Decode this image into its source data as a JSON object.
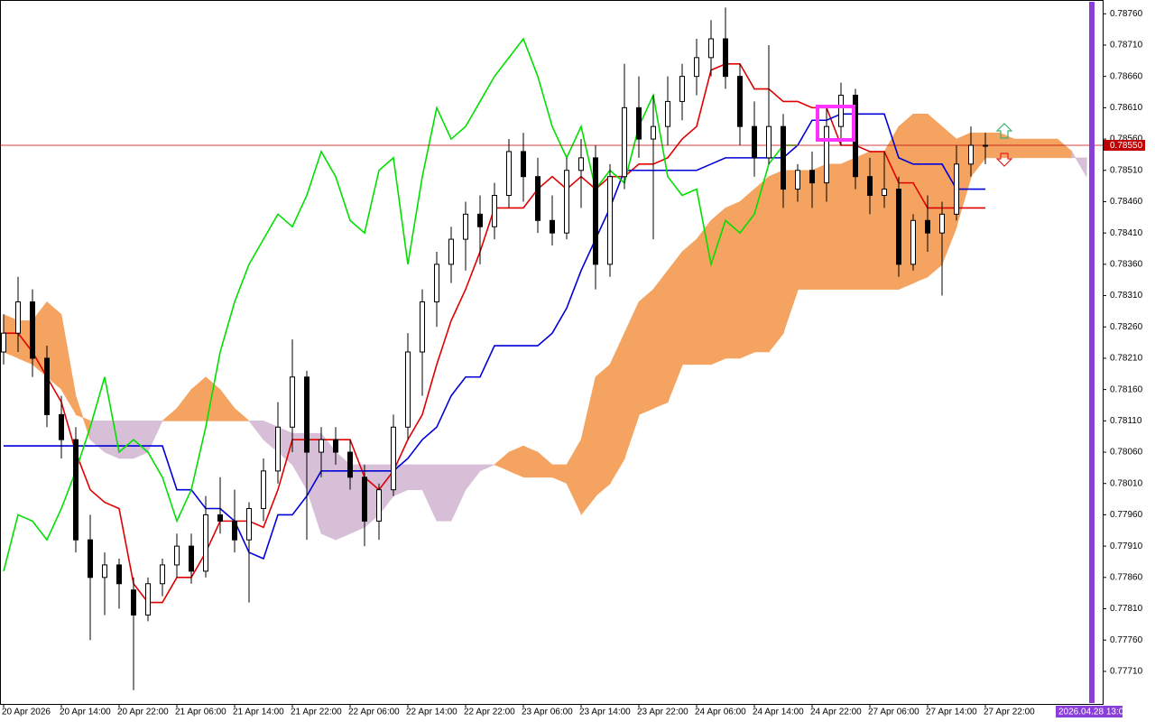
{
  "chart_data": {
    "type": "candlestick",
    "categories": [
      "20 Apr 2026",
      null,
      null,
      null,
      "20 Apr 14:00",
      null,
      null,
      null,
      "20 Apr 22:00",
      null,
      null,
      null,
      "21 Apr 06:00",
      null,
      null,
      null,
      "21 Apr 14:00",
      null,
      null,
      null,
      "21 Apr 22:00",
      null,
      null,
      null,
      "22 Apr 06:00",
      null,
      null,
      null,
      "22 Apr 14:00",
      null,
      null,
      null,
      "22 Apr 22:00",
      null,
      null,
      null,
      "23 Apr 06:00",
      null,
      null,
      null,
      "23 Apr 14:00",
      null,
      null,
      null,
      "23 Apr 22:00",
      null,
      null,
      null,
      "24 Apr 06:00",
      null,
      null,
      null,
      "24 Apr 14:00",
      null,
      null,
      null,
      "24 Apr 22:00",
      null,
      null,
      null,
      "27 Apr 06:00",
      null,
      null,
      null,
      "27 Apr 14:00",
      null,
      null,
      null,
      "27 Apr 22:00",
      null,
      null,
      null,
      null,
      null,
      null,
      null
    ],
    "open": [
      0.7822,
      0.7825,
      0.783,
      0.7821,
      0.7812,
      0.7808,
      0.7792,
      0.7786,
      0.7788,
      0.7784,
      0.778,
      0.7785,
      0.7788,
      0.7791,
      0.7787,
      0.7796,
      0.7795,
      0.7792,
      0.7797,
      0.7803,
      0.781,
      0.7818,
      0.7806,
      0.7808,
      0.7806,
      0.7802,
      0.7795,
      0.78,
      0.781,
      0.7822,
      0.783,
      0.7836,
      0.784,
      0.7844,
      0.7842,
      0.7847,
      0.7854,
      0.785,
      0.7843,
      0.7841,
      0.7851,
      0.7853,
      0.7836,
      0.785,
      0.7861,
      0.7856,
      0.7858,
      0.7862,
      0.7866,
      0.7869,
      0.7872,
      0.7866,
      0.7858,
      0.7853,
      0.7858,
      0.7848,
      0.7851,
      0.7849,
      0.7858,
      0.7863,
      0.785,
      0.7847,
      0.7848,
      0.7836,
      0.7843,
      0.7841,
      0.7844,
      0.7852,
      0.7855,
      null,
      null,
      null,
      null,
      null,
      null,
      null
    ],
    "high": [
      0.7828,
      0.7834,
      0.7832,
      0.7823,
      0.7815,
      0.781,
      0.7796,
      0.779,
      0.7789,
      0.7786,
      0.7786,
      0.7789,
      0.7793,
      0.7793,
      0.7799,
      0.7802,
      0.78,
      0.7798,
      0.7805,
      0.7814,
      0.7824,
      0.7819,
      0.781,
      0.781,
      0.7808,
      0.7804,
      0.7801,
      0.7812,
      0.7825,
      0.7832,
      0.7838,
      0.7842,
      0.7846,
      0.7847,
      0.7849,
      0.7856,
      0.7857,
      0.7853,
      0.7847,
      0.7853,
      0.7856,
      0.7855,
      0.7852,
      0.7868,
      0.7866,
      0.7863,
      0.7866,
      0.7868,
      0.7872,
      0.7875,
      0.7877,
      0.7868,
      0.7862,
      0.7871,
      0.786,
      0.7852,
      0.7854,
      0.7861,
      0.7865,
      0.7864,
      0.7853,
      0.7854,
      0.785,
      0.7844,
      0.7847,
      0.7846,
      0.7855,
      0.7858,
      0.7857,
      null,
      null,
      null,
      null,
      null,
      null,
      null
    ],
    "low": [
      0.782,
      0.7822,
      0.7818,
      0.781,
      0.7805,
      0.779,
      0.7776,
      0.778,
      0.7781,
      0.7768,
      0.7779,
      0.7783,
      0.7786,
      0.7785,
      0.7786,
      0.7793,
      0.779,
      0.7782,
      0.7795,
      0.7801,
      0.7806,
      0.7792,
      0.7802,
      0.7804,
      0.78,
      0.7791,
      0.7792,
      0.7799,
      0.7808,
      0.7815,
      0.7826,
      0.7833,
      0.7835,
      0.7836,
      0.784,
      0.7845,
      0.7846,
      0.7841,
      0.7839,
      0.784,
      0.7845,
      0.7832,
      0.7834,
      0.7848,
      0.7853,
      0.784,
      0.7855,
      0.7859,
      0.7863,
      0.7866,
      0.7864,
      0.7855,
      0.785,
      0.7852,
      0.7845,
      0.7846,
      0.7845,
      0.7846,
      0.7855,
      0.7848,
      0.7844,
      0.7845,
      0.7834,
      0.7835,
      0.7838,
      0.7831,
      0.7843,
      0.785,
      0.7852,
      null,
      null,
      null,
      null,
      null,
      null,
      null
    ],
    "close": [
      0.7825,
      0.783,
      0.7821,
      0.7812,
      0.7808,
      0.7792,
      0.7786,
      0.7788,
      0.7785,
      0.778,
      0.7785,
      0.7788,
      0.7791,
      0.7787,
      0.7796,
      0.7795,
      0.7792,
      0.7797,
      0.7803,
      0.781,
      0.7818,
      0.7806,
      0.7808,
      0.7806,
      0.7802,
      0.7795,
      0.78,
      0.781,
      0.7822,
      0.783,
      0.7836,
      0.784,
      0.7844,
      0.7842,
      0.7847,
      0.7854,
      0.785,
      0.7843,
      0.7841,
      0.7851,
      0.7853,
      0.7836,
      0.785,
      0.7861,
      0.7856,
      0.7858,
      0.7862,
      0.7866,
      0.7869,
      0.7872,
      0.7866,
      0.7858,
      0.7853,
      0.7858,
      0.7848,
      0.7851,
      0.7849,
      0.7858,
      0.7863,
      0.785,
      0.7847,
      0.7848,
      0.7836,
      0.7843,
      0.7841,
      0.7844,
      0.7852,
      0.7855,
      0.7855,
      null,
      null,
      null,
      null,
      null,
      null,
      null
    ],
    "up_color": "#ffffff",
    "down_color": "#000000",
    "wick_color": "#000000",
    "indicators": {
      "senkou_span_a": {
        "color": "#f4a460",
        "values": [
          0.7828,
          0.7827,
          0.7827,
          0.783,
          0.7828,
          0.7815,
          0.7808,
          0.7806,
          0.7805,
          0.7805,
          0.7806,
          0.7811,
          0.7813,
          0.7816,
          0.7818,
          0.7816,
          0.7813,
          0.7811,
          0.7808,
          0.7806,
          0.7804,
          0.78,
          0.7793,
          0.7792,
          0.7793,
          0.7794,
          0.7796,
          0.7799,
          0.78,
          0.78,
          0.7795,
          0.7795,
          0.78,
          0.7803,
          0.7804,
          0.7806,
          0.7807,
          0.7806,
          0.7804,
          0.7804,
          0.7808,
          0.7818,
          0.782,
          0.7825,
          0.783,
          0.7832,
          0.7835,
          0.7838,
          0.784,
          0.7843,
          0.7845,
          0.7846,
          0.7848,
          0.785,
          0.7851,
          0.7851,
          0.7851,
          0.7852,
          0.7852,
          0.7853,
          0.7854,
          0.7854,
          0.7858,
          0.786,
          0.786,
          0.7858,
          0.7856,
          0.7857,
          0.7857,
          0.7857,
          0.7856,
          0.7856,
          0.7856,
          0.7856,
          0.7854,
          0.785
        ]
      },
      "senkou_span_b": {
        "color": "#d8bfd8",
        "values": [
          0.7822,
          0.7821,
          0.782,
          0.7818,
          0.7816,
          0.7812,
          0.7811,
          0.7811,
          0.7811,
          0.7811,
          0.7811,
          0.7811,
          0.7811,
          0.7811,
          0.7811,
          0.7811,
          0.7811,
          0.7811,
          0.7811,
          0.781,
          0.7809,
          0.7809,
          0.7809,
          0.7806,
          0.7804,
          0.7804,
          0.7804,
          0.7804,
          0.7804,
          0.7804,
          0.7804,
          0.7804,
          0.7804,
          0.7804,
          0.7804,
          0.7803,
          0.7802,
          0.7802,
          0.7802,
          0.7801,
          0.7796,
          0.7799,
          0.7801,
          0.7805,
          0.7812,
          0.7813,
          0.7814,
          0.782,
          0.782,
          0.782,
          0.7821,
          0.7821,
          0.7822,
          0.7822,
          0.7825,
          0.7832,
          0.7832,
          0.7832,
          0.7832,
          0.7832,
          0.7832,
          0.7832,
          0.7832,
          0.7833,
          0.7834,
          0.7836,
          0.7842,
          0.785,
          0.7853,
          0.7853,
          0.7853,
          0.7853,
          0.7853,
          0.7853,
          0.7853,
          0.7853
        ]
      },
      "tenkan_sen": {
        "color": "#e00000",
        "values": [
          0.7825,
          0.7825,
          0.7822,
          0.7818,
          0.7814,
          0.7806,
          0.78,
          0.7798,
          0.7797,
          0.7785,
          0.7782,
          0.7782,
          0.7786,
          0.7786,
          0.779,
          0.7795,
          0.7795,
          0.7795,
          0.7794,
          0.78,
          0.7808,
          0.7808,
          0.7808,
          0.7808,
          0.7808,
          0.7802,
          0.78,
          0.7803,
          0.7808,
          0.7812,
          0.782,
          0.7827,
          0.7832,
          0.7838,
          0.7845,
          0.7845,
          0.7845,
          0.7848,
          0.785,
          0.7848,
          0.785,
          0.7848,
          0.785,
          0.785,
          0.7852,
          0.7852,
          0.7853,
          0.7856,
          0.7858,
          0.7867,
          0.7868,
          0.7868,
          0.7864,
          0.7864,
          0.7862,
          0.7862,
          0.7861,
          0.7861,
          0.7855,
          0.7855,
          0.7854,
          0.7854,
          0.7849,
          0.7849,
          0.7845,
          0.7845,
          0.7845,
          0.7845,
          0.7845,
          null,
          null,
          null,
          null,
          null,
          null,
          null
        ]
      },
      "kijun_sen": {
        "color": "#0000d8",
        "values": [
          0.7807,
          0.7807,
          0.7807,
          0.7807,
          0.7807,
          0.7807,
          0.7807,
          0.7807,
          0.7807,
          0.7807,
          0.7807,
          0.7807,
          0.78,
          0.78,
          0.7797,
          0.7797,
          0.7795,
          0.779,
          0.7789,
          0.7796,
          0.7796,
          0.7799,
          0.7803,
          0.7803,
          0.7803,
          0.7803,
          0.7803,
          0.7803,
          0.7805,
          0.7808,
          0.781,
          0.7815,
          0.7818,
          0.7818,
          0.7823,
          0.7823,
          0.7823,
          0.7823,
          0.7825,
          0.7829,
          0.7835,
          0.784,
          0.7845,
          0.7851,
          0.7851,
          0.7851,
          0.7851,
          0.7851,
          0.7851,
          0.7852,
          0.7853,
          0.7853,
          0.7853,
          0.7853,
          0.7853,
          0.7855,
          0.7859,
          0.7859,
          0.786,
          0.786,
          0.786,
          0.786,
          0.7853,
          0.7852,
          0.7852,
          0.7852,
          0.7848,
          0.7848,
          0.7848,
          null,
          null,
          null,
          null,
          null,
          null,
          null
        ]
      },
      "chikou_span": {
        "color": "#00e000",
        "values": [
          0.7787,
          0.7796,
          0.7795,
          0.7792,
          0.7797,
          0.7803,
          0.781,
          0.7818,
          0.7806,
          0.7808,
          0.7806,
          0.7802,
          0.7795,
          0.78,
          0.781,
          0.7822,
          0.783,
          0.7836,
          0.784,
          0.7844,
          0.7842,
          0.7847,
          0.7854,
          0.785,
          0.7843,
          0.7841,
          0.7851,
          0.7853,
          0.7836,
          0.785,
          0.7861,
          0.7856,
          0.7858,
          0.7862,
          0.7866,
          0.7869,
          0.7872,
          0.7866,
          0.7858,
          0.7853,
          0.7858,
          0.7848,
          0.7851,
          0.7849,
          0.7858,
          0.7863,
          0.785,
          0.7847,
          0.7848,
          0.7836,
          0.7843,
          0.7841,
          0.7844,
          0.7852,
          0.7855,
          0.7855,
          null,
          null,
          null,
          null,
          null,
          null,
          null,
          null,
          null,
          null,
          null,
          null,
          null,
          null,
          null,
          null,
          null,
          null,
          null,
          null
        ]
      }
    },
    "ylim": [
      0.77658,
      0.78782
    ],
    "yticks": [
      {
        "value": 0.7876,
        "label": "0.78760"
      },
      {
        "value": 0.7871,
        "label": "0.78710"
      },
      {
        "value": 0.7866,
        "label": "0.78660"
      },
      {
        "value": 0.7861,
        "label": "0.78610"
      },
      {
        "value": 0.7856,
        "label": "0.78560"
      },
      {
        "value": 0.7851,
        "label": "0.78510"
      },
      {
        "value": 0.7846,
        "label": "0.78460"
      },
      {
        "value": 0.7841,
        "label": "0.78410"
      },
      {
        "value": 0.7836,
        "label": "0.78360"
      },
      {
        "value": 0.7831,
        "label": "0.78310"
      },
      {
        "value": 0.7826,
        "label": "0.78260"
      },
      {
        "value": 0.7821,
        "label": "0.78210"
      },
      {
        "value": 0.7816,
        "label": "0.78160"
      },
      {
        "value": 0.7811,
        "label": "0.78110"
      },
      {
        "value": 0.7806,
        "label": "0.78060"
      },
      {
        "value": 0.7801,
        "label": "0.78010"
      },
      {
        "value": 0.7796,
        "label": "0.77960"
      },
      {
        "value": 0.7791,
        "label": "0.77910"
      },
      {
        "value": 0.7786,
        "label": "0.77860"
      },
      {
        "value": 0.7781,
        "label": "0.77810"
      },
      {
        "value": 0.7776,
        "label": "0.77760"
      },
      {
        "value": 0.7771,
        "label": "0.77710"
      }
    ],
    "last_price": {
      "value": 0.7855,
      "label": "0.78550",
      "color": "#c00000"
    },
    "cursor_time": "2026.04.28 13:00",
    "cursor_color": "#8a3fd9",
    "grid": false
  }
}
